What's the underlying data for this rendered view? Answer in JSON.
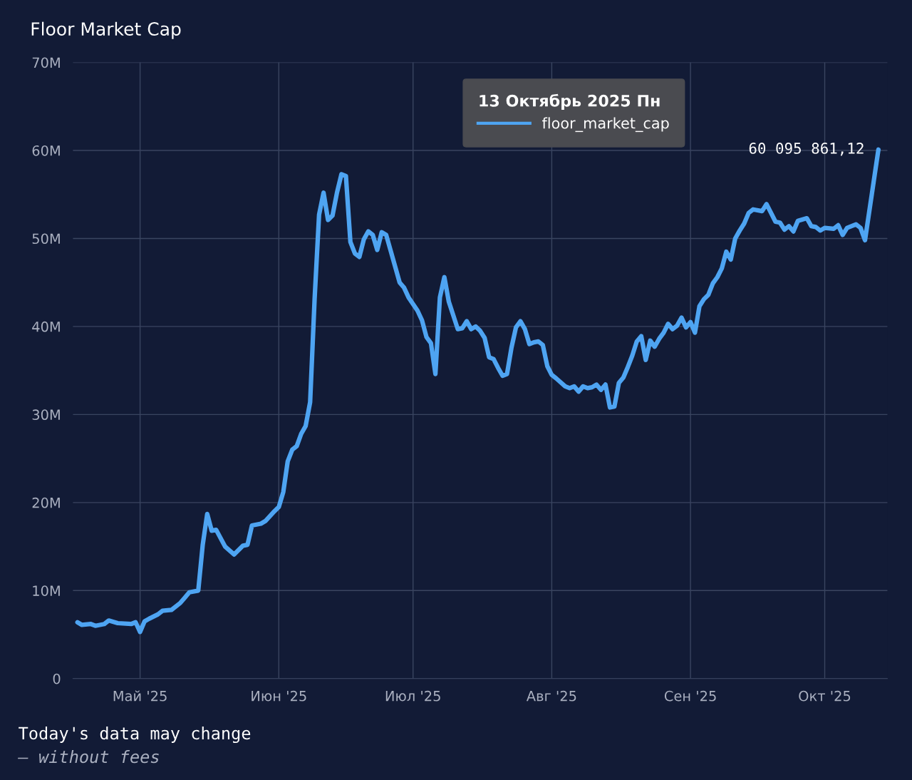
{
  "chart_data": {
    "type": "line",
    "title": "Floor Market Cap",
    "x": [
      "2025-04-17",
      "2025-04-18",
      "2025-04-20",
      "2025-04-21",
      "2025-04-23",
      "2025-04-24",
      "2025-04-26",
      "2025-04-29",
      "2025-04-30",
      "2025-05-01",
      "2025-05-02",
      "2025-05-03",
      "2025-05-05",
      "2025-05-06",
      "2025-05-08",
      "2025-05-10",
      "2025-05-11",
      "2025-05-12",
      "2025-05-14",
      "2025-05-15",
      "2025-05-16",
      "2025-05-17",
      "2025-05-18",
      "2025-05-20",
      "2025-05-22",
      "2025-05-24",
      "2025-05-25",
      "2025-05-26",
      "2025-05-28",
      "2025-05-29",
      "2025-05-31",
      "2025-06-01",
      "2025-06-02",
      "2025-06-03",
      "2025-06-04",
      "2025-06-05",
      "2025-06-06",
      "2025-06-07",
      "2025-06-08",
      "2025-06-09",
      "2025-06-10",
      "2025-06-11",
      "2025-06-12",
      "2025-06-13",
      "2025-06-14",
      "2025-06-15",
      "2025-06-16",
      "2025-06-17",
      "2025-06-18",
      "2025-06-19",
      "2025-06-20",
      "2025-06-21",
      "2025-06-22",
      "2025-06-23",
      "2025-06-24",
      "2025-06-25",
      "2025-06-27",
      "2025-06-28",
      "2025-06-29",
      "2025-06-30",
      "2025-07-02",
      "2025-07-03",
      "2025-07-04",
      "2025-07-05",
      "2025-07-06",
      "2025-07-07",
      "2025-07-08",
      "2025-07-09",
      "2025-07-11",
      "2025-07-12",
      "2025-07-13",
      "2025-07-14",
      "2025-07-15",
      "2025-07-16",
      "2025-07-17",
      "2025-07-18",
      "2025-07-19",
      "2025-07-20",
      "2025-07-21",
      "2025-07-22",
      "2025-07-23",
      "2025-07-24",
      "2025-07-25",
      "2025-07-26",
      "2025-07-27",
      "2025-07-28",
      "2025-07-29",
      "2025-07-30",
      "2025-07-31",
      "2025-08-01",
      "2025-08-02",
      "2025-08-04",
      "2025-08-05",
      "2025-08-06",
      "2025-08-07",
      "2025-08-08",
      "2025-08-09",
      "2025-08-10",
      "2025-08-11",
      "2025-08-12",
      "2025-08-13",
      "2025-08-14",
      "2025-08-15",
      "2025-08-16",
      "2025-08-17",
      "2025-08-18",
      "2025-08-19",
      "2025-08-20",
      "2025-08-21",
      "2025-08-22",
      "2025-08-23",
      "2025-08-24",
      "2025-08-25",
      "2025-08-26",
      "2025-08-27",
      "2025-08-28",
      "2025-08-29",
      "2025-08-30",
      "2025-08-31",
      "2025-09-01",
      "2025-09-02",
      "2025-09-03",
      "2025-09-04",
      "2025-09-05",
      "2025-09-06",
      "2025-09-07",
      "2025-09-08",
      "2025-09-09",
      "2025-09-10",
      "2025-09-11",
      "2025-09-12",
      "2025-09-13",
      "2025-09-14",
      "2025-09-15",
      "2025-09-17",
      "2025-09-18",
      "2025-09-19",
      "2025-09-20",
      "2025-09-21",
      "2025-09-22",
      "2025-09-23",
      "2025-09-24",
      "2025-09-25",
      "2025-09-27",
      "2025-09-28",
      "2025-09-29",
      "2025-09-30",
      "2025-10-01",
      "2025-10-03",
      "2025-10-04",
      "2025-10-05",
      "2025-10-06",
      "2025-10-07",
      "2025-10-08",
      "2025-10-09",
      "2025-10-10",
      "2025-10-13"
    ],
    "series": [
      {
        "name": "floor_market_cap",
        "color": "#4ea4f2",
        "values": [
          6.4,
          6.1,
          6.2,
          6.0,
          6.2,
          6.6,
          6.3,
          6.2,
          6.4,
          5.3,
          6.5,
          6.8,
          7.3,
          7.7,
          7.8,
          8.6,
          9.2,
          9.8,
          10.0,
          15.2,
          18.7,
          16.8,
          16.9,
          15.0,
          14.1,
          15.1,
          15.2,
          17.4,
          17.6,
          17.9,
          19.0,
          19.5,
          21.2,
          24.7,
          26.0,
          26.4,
          27.8,
          28.7,
          31.4,
          43.1,
          52.7,
          55.2,
          52.1,
          52.6,
          55.2,
          57.3,
          57.1,
          49.6,
          48.3,
          47.9,
          49.9,
          50.8,
          50.4,
          48.7,
          50.7,
          50.4,
          46.8,
          45.0,
          44.4,
          43.3,
          41.8,
          40.7,
          38.8,
          38.1,
          34.6,
          43.3,
          45.6,
          42.8,
          39.7,
          39.8,
          40.6,
          39.7,
          40.0,
          39.5,
          38.7,
          36.5,
          36.3,
          35.3,
          34.4,
          34.6,
          37.6,
          39.9,
          40.6,
          39.7,
          38.0,
          38.2,
          38.3,
          37.9,
          35.5,
          34.5,
          34.1,
          33.2,
          33.0,
          33.2,
          32.6,
          33.2,
          33.0,
          33.1,
          33.4,
          32.8,
          33.4,
          30.8,
          30.9,
          33.6,
          34.2,
          35.4,
          36.7,
          38.3,
          38.9,
          36.2,
          38.4,
          37.7,
          38.6,
          39.3,
          40.3,
          39.7,
          40.1,
          41.0,
          39.9,
          40.5,
          39.3,
          42.3,
          43.1,
          43.6,
          44.9,
          45.6,
          46.6,
          48.5,
          47.6,
          50.0,
          50.9,
          51.7,
          52.9,
          53.3,
          53.1,
          53.9,
          52.9,
          51.9,
          51.8,
          51.0,
          51.4,
          50.8,
          52.0,
          52.3,
          51.4,
          51.3,
          50.9,
          51.2,
          51.1,
          51.5,
          50.4,
          51.2,
          51.4,
          51.6,
          51.2,
          49.8,
          60.1
        ]
      }
    ],
    "xlim": [
      "2025-04-16",
      "2025-10-15"
    ],
    "xticks": [
      {
        "value": "2025-05-01",
        "label": "Май '25"
      },
      {
        "value": "2025-06-01",
        "label": "Июн '25"
      },
      {
        "value": "2025-07-01",
        "label": "Июл '25"
      },
      {
        "value": "2025-08-01",
        "label": "Авг '25"
      },
      {
        "value": "2025-09-01",
        "label": "Сен '25"
      },
      {
        "value": "2025-10-01",
        "label": "Окт '25"
      }
    ],
    "ylim": [
      0,
      70
    ],
    "yticks": [
      0,
      {
        "value": 10,
        "label": "10M"
      },
      {
        "value": 20,
        "label": "20M"
      },
      {
        "value": 30,
        "label": "30M"
      },
      {
        "value": 40,
        "label": "40M"
      },
      {
        "value": 50,
        "label": "50M"
      },
      {
        "value": 60,
        "label": "60M"
      },
      {
        "value": 70,
        "label": "70M"
      }
    ],
    "grid": true,
    "legend": "top right",
    "legend_title": "13 Октябрь 2025 Пн",
    "annotations": [
      {
        "text": "60 095 861,12",
        "x": "2025-10-13",
        "y": 60.1
      },
      "Today's data may change",
      "– without fees"
    ]
  }
}
